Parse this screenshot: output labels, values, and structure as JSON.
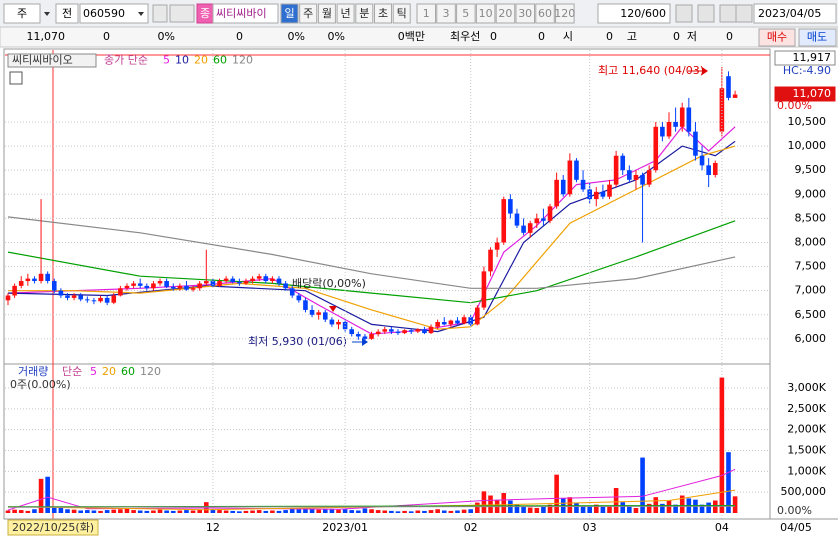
{
  "toolbar": {
    "market": "주",
    "prev": "전",
    "code": "060590",
    "badge": "종",
    "name": "씨티씨바이",
    "periods": [
      "일",
      "주",
      "월",
      "년",
      "분",
      "초",
      "틱"
    ],
    "intervals": [
      "1",
      "3",
      "5",
      "10",
      "20",
      "30",
      "60",
      "120"
    ],
    "count": "120/600",
    "date": "2023/04/05"
  },
  "info_bar": {
    "items": [
      "11,070",
      "0",
      "0%",
      "0",
      "0%",
      "0%",
      "0백만",
      "최우선",
      "0",
      "0",
      "시",
      "0",
      "고",
      "0",
      "저",
      "0"
    ],
    "buy": "매수",
    "sell": "매도"
  },
  "chart_data": [
    {
      "type": "candlestick",
      "title": "씨티씨바이오",
      "ma_label": "종가 단순",
      "up_color": "#ff1010",
      "down_color": "#0040ff",
      "ylim": [
        5520,
        11890
      ],
      "yticks": [
        {
          "value": 6000,
          "label": "6,000"
        },
        {
          "value": 6500,
          "label": "6,500"
        },
        {
          "value": 7000,
          "label": "7,000"
        },
        {
          "value": 7500,
          "label": "7,500"
        },
        {
          "value": 8000,
          "label": "8,000"
        },
        {
          "value": 8500,
          "label": "8,500"
        },
        {
          "value": 9000,
          "label": "9,000"
        },
        {
          "value": 9500,
          "label": "9,500"
        },
        {
          "value": 10000,
          "label": "10,000"
        },
        {
          "value": 10500,
          "label": "10,500"
        }
      ],
      "ohlc": [
        [
          6800,
          6950,
          6700,
          6900
        ],
        [
          6900,
          7150,
          6850,
          7100
        ],
        [
          7100,
          7300,
          7050,
          7200
        ],
        [
          7200,
          7350,
          7100,
          7250
        ],
        [
          7250,
          7300,
          7150,
          7200
        ],
        [
          7200,
          8900,
          7150,
          7350
        ],
        [
          7350,
          7400,
          7150,
          7200
        ],
        [
          7200,
          7250,
          6950,
          7000
        ],
        [
          7000,
          7050,
          6850,
          6900
        ],
        [
          6900,
          6950,
          6800,
          6850
        ],
        [
          6850,
          6950,
          6800,
          6900
        ],
        [
          6900,
          6950,
          6780,
          6820
        ],
        [
          6820,
          6880,
          6750,
          6800
        ],
        [
          6800,
          6850,
          6720,
          6780
        ],
        [
          6780,
          6900,
          6750,
          6850
        ],
        [
          6850,
          6900,
          6700,
          6750
        ],
        [
          6750,
          6950,
          6720,
          6900
        ],
        [
          6900,
          7100,
          6880,
          7050
        ],
        [
          7050,
          7150,
          7000,
          7100
        ],
        [
          7100,
          7200,
          7050,
          7150
        ],
        [
          7150,
          7250,
          7050,
          7100
        ],
        [
          7100,
          7150,
          7000,
          7050
        ],
        [
          7050,
          7200,
          7000,
          7150
        ],
        [
          7150,
          7250,
          7100,
          7200
        ],
        [
          7200,
          7250,
          7050,
          7080
        ],
        [
          7080,
          7150,
          7000,
          7050
        ],
        [
          7050,
          7150,
          7000,
          7100
        ],
        [
          7100,
          7200,
          7000,
          7020
        ],
        [
          7020,
          7100,
          6980,
          7050
        ],
        [
          7050,
          7200,
          7000,
          7150
        ],
        [
          7150,
          7850,
          7100,
          7200
        ],
        [
          7200,
          7250,
          7080,
          7100
        ],
        [
          7100,
          7250,
          7080,
          7200
        ],
        [
          7200,
          7300,
          7150,
          7250
        ],
        [
          7250,
          7300,
          7150,
          7180
        ],
        [
          7180,
          7250,
          7100,
          7150
        ],
        [
          7150,
          7250,
          7120,
          7200
        ],
        [
          7200,
          7300,
          7150,
          7250
        ],
        [
          7250,
          7350,
          7200,
          7300
        ],
        [
          7300,
          7350,
          7150,
          7200
        ],
        [
          7200,
          7300,
          7150,
          7250
        ],
        [
          7250,
          7300,
          7100,
          7150
        ],
        [
          7150,
          7200,
          7000,
          7050
        ],
        [
          7050,
          7100,
          6850,
          6900
        ],
        [
          6900,
          6950,
          6750,
          6800
        ],
        [
          6800,
          6850,
          6550,
          6600
        ],
        [
          6600,
          6700,
          6450,
          6500
        ],
        [
          6500,
          6600,
          6400,
          6550
        ],
        [
          6550,
          6600,
          6350,
          6400
        ],
        [
          6400,
          6450,
          6250,
          6300
        ],
        [
          6300,
          6400,
          6200,
          6350
        ],
        [
          6350,
          6400,
          6150,
          6200
        ],
        [
          6200,
          6250,
          6050,
          6100
        ],
        [
          6100,
          6150,
          5980,
          6050
        ],
        [
          6050,
          6100,
          5930,
          6000
        ],
        [
          6000,
          6150,
          5980,
          6100
        ],
        [
          6100,
          6200,
          6050,
          6150
        ],
        [
          6150,
          6250,
          6100,
          6200
        ],
        [
          6200,
          6250,
          6100,
          6150
        ],
        [
          6150,
          6200,
          6080,
          6120
        ],
        [
          6120,
          6200,
          6100,
          6180
        ],
        [
          6180,
          6200,
          6100,
          6150
        ],
        [
          6150,
          6220,
          6120,
          6200
        ],
        [
          6200,
          6250,
          6100,
          6120
        ],
        [
          6120,
          6300,
          6100,
          6250
        ],
        [
          6250,
          6400,
          6200,
          6350
        ],
        [
          6350,
          6450,
          6280,
          6300
        ],
        [
          6300,
          6400,
          6250,
          6380
        ],
        [
          6380,
          6450,
          6300,
          6320
        ],
        [
          6320,
          6500,
          6300,
          6450
        ],
        [
          6450,
          6500,
          6250,
          6300
        ],
        [
          6300,
          6700,
          6280,
          6650
        ],
        [
          6650,
          7500,
          6600,
          7400
        ],
        [
          7400,
          7900,
          7300,
          7850
        ],
        [
          7850,
          8100,
          7700,
          8000
        ],
        [
          8000,
          8950,
          7950,
          8900
        ],
        [
          8900,
          9000,
          8500,
          8600
        ],
        [
          8600,
          8700,
          8300,
          8350
        ],
        [
          8350,
          8500,
          8150,
          8200
        ],
        [
          8200,
          8450,
          8100,
          8400
        ],
        [
          8400,
          8600,
          8300,
          8500
        ],
        [
          8500,
          8700,
          8350,
          8450
        ],
        [
          8450,
          8800,
          8400,
          8750
        ],
        [
          8750,
          9450,
          8700,
          9300
        ],
        [
          9300,
          9400,
          8950,
          9000
        ],
        [
          9000,
          9850,
          8950,
          9700
        ],
        [
          9700,
          9750,
          9250,
          9300
        ],
        [
          9300,
          9500,
          9050,
          9100
        ],
        [
          9100,
          9250,
          8800,
          8900
        ],
        [
          8900,
          9150,
          8750,
          9050
        ],
        [
          9050,
          9200,
          8900,
          8950
        ],
        [
          8950,
          9300,
          8900,
          9200
        ],
        [
          9200,
          9900,
          9150,
          9800
        ],
        [
          9800,
          9850,
          9400,
          9500
        ],
        [
          9500,
          9600,
          9250,
          9300
        ],
        [
          9300,
          9500,
          9100,
          9400
        ],
        [
          9400,
          9450,
          8000,
          9200
        ],
        [
          9200,
          9600,
          9150,
          9500
        ],
        [
          9500,
          10500,
          9450,
          10400
        ],
        [
          10400,
          10500,
          10100,
          10200
        ],
        [
          10200,
          10700,
          10150,
          10500
        ],
        [
          10500,
          10800,
          10300,
          10400
        ],
        [
          10400,
          10900,
          10300,
          10800
        ],
        [
          10800,
          11000,
          10200,
          10300
        ],
        [
          10300,
          10500,
          9700,
          9800
        ],
        [
          9800,
          10000,
          9500,
          9600
        ],
        [
          9600,
          9750,
          9150,
          9400
        ],
        [
          9400,
          9700,
          9350,
          9650
        ],
        [
          10300,
          11640,
          10200,
          11200
        ],
        [
          11450,
          11550,
          10950,
          11000
        ],
        [
          11000,
          11150,
          11000,
          11070
        ]
      ],
      "series": [
        {
          "name": "5",
          "color": "#e020e0",
          "x": [
            0,
            10,
            20,
            30,
            40,
            47,
            55,
            62,
            70,
            75,
            80,
            86,
            92,
            98,
            102,
            106,
            110
          ],
          "values": [
            6950,
            7000,
            7050,
            7120,
            7250,
            6700,
            6100,
            6170,
            6350,
            7800,
            8350,
            9200,
            9300,
            9700,
            10400,
            9900,
            10400
          ]
        },
        {
          "name": "10",
          "color": "#1a1aa0",
          "x": [
            0,
            15,
            30,
            45,
            55,
            65,
            72,
            78,
            85,
            95,
            102,
            107,
            110
          ],
          "values": [
            6950,
            6900,
            7100,
            7000,
            6300,
            6150,
            6450,
            8000,
            8800,
            9300,
            10000,
            9800,
            10100
          ]
        },
        {
          "name": "20",
          "color": "#f0a000",
          "x": [
            0,
            10,
            20,
            35,
            45,
            55,
            65,
            70,
            75,
            85,
            95,
            105,
            110
          ],
          "values": [
            7000,
            7000,
            6950,
            7150,
            7050,
            6600,
            6200,
            6250,
            6800,
            8400,
            9100,
            9800,
            10000
          ]
        },
        {
          "name": "60",
          "color": "#00a000",
          "x": [
            0,
            20,
            40,
            55,
            70,
            80,
            95,
            110
          ],
          "values": [
            7800,
            7300,
            7150,
            6950,
            6750,
            7000,
            7700,
            8450
          ]
        },
        {
          "name": "120",
          "color": "#888888",
          "x": [
            0,
            20,
            40,
            55,
            70,
            80,
            95,
            110
          ],
          "values": [
            8530,
            8200,
            7750,
            7350,
            7050,
            7050,
            7250,
            7700
          ]
        }
      ],
      "annotations": {
        "high": "최고 11,640 (04/03)",
        "low": "최저 5,930 (01/06)",
        "event": "배당락(0,00%)"
      },
      "side_labels": {
        "top": "11,917",
        "hc": "HC:-4.90",
        "current": "11,070",
        "change": "0.00%"
      }
    },
    {
      "type": "bar",
      "title": "거래량",
      "ma_label": "단순",
      "subtitle": "0주(0.00%)",
      "ylim": [
        0,
        3480
      ],
      "yticks": [
        {
          "value": 500,
          "label": "500,000"
        },
        {
          "value": 1000,
          "label": "1,000K"
        },
        {
          "value": 1500,
          "label": "1,500K"
        },
        {
          "value": 2000,
          "label": "2,000K"
        },
        {
          "value": 2500,
          "label": "2,500K"
        },
        {
          "value": 3000,
          "label": "3,000K"
        }
      ],
      "zero_label": "0.00%",
      "values": [
        60,
        80,
        70,
        50,
        90,
        820,
        870,
        150,
        120,
        90,
        80,
        60,
        70,
        60,
        50,
        70,
        80,
        90,
        100,
        70,
        60,
        50,
        60,
        80,
        60,
        50,
        60,
        70,
        60,
        80,
        260,
        90,
        70,
        60,
        50,
        40,
        50,
        60,
        70,
        50,
        60,
        50,
        70,
        110,
        90,
        120,
        100,
        80,
        90,
        100,
        80,
        90,
        70,
        60,
        110,
        90,
        70,
        60,
        50,
        40,
        50,
        40,
        60,
        50,
        70,
        90,
        60,
        50,
        60,
        80,
        90,
        250,
        520,
        420,
        300,
        480,
        300,
        200,
        150,
        130,
        120,
        150,
        200,
        920,
        350,
        380,
        250,
        180,
        150,
        200,
        150,
        180,
        600,
        260,
        150,
        120,
        1330,
        220,
        380,
        220,
        300,
        200,
        420,
        350,
        320,
        200,
        250,
        300,
        3250,
        1460,
        400
      ],
      "series": [
        {
          "name": "5",
          "color": "#e020e0",
          "x": [
            0,
            6,
            12,
            30,
            50,
            72,
            83,
            96,
            108,
            110
          ],
          "values": [
            70,
            380,
            100,
            120,
            90,
            300,
            350,
            400,
            900,
            1050
          ]
        },
        {
          "name": "20",
          "color": "#f0a000",
          "x": [
            0,
            30,
            75,
            100,
            110
          ],
          "values": [
            150,
            80,
            200,
            300,
            550
          ]
        },
        {
          "name": "60",
          "color": "#00a000",
          "x": [
            0,
            110
          ],
          "values": [
            150,
            180
          ]
        },
        {
          "name": "120",
          "color": "#888888",
          "x": [
            0,
            110
          ],
          "values": [
            140,
            160
          ]
        }
      ],
      "xticks": [
        {
          "value": 31,
          "label": "12"
        },
        {
          "value": 51,
          "label": "2023/01"
        },
        {
          "value": 70,
          "label": "02"
        },
        {
          "value": 88,
          "label": "03"
        },
        {
          "value": 108,
          "label": "04"
        }
      ],
      "start_label": "2022/10/25(화)",
      "end_label": "04/05"
    }
  ]
}
